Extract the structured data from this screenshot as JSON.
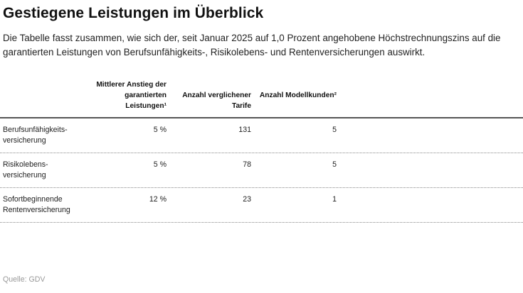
{
  "title": "Gestiegene Leistungen im Überblick",
  "subtitle": "Die Tabelle fasst zusammen, wie sich der, seit Januar 2025 auf 1,0 Prozent angehobene  Höchstrechnungszins auf die garantierten Leistungen von Berufsunfähigkeits-, Risikolebens- und Rentenversicherungen auswirkt.",
  "table": {
    "headers": [
      "Mittlerer Anstieg der garantierten Leistungen¹",
      "Anzahl verglichener Tarife",
      "Anzahl Modellkunden²"
    ],
    "rows": [
      {
        "label": "Berufsunfähigkeits-versicherung",
        "anstieg": "5 %",
        "tarife": "131",
        "kunden": "5"
      },
      {
        "label": "Risikolebens-versicherung",
        "anstieg": "5 %",
        "tarife": "78",
        "kunden": "5"
      },
      {
        "label": "Sofortbeginnende Rentenversicherung",
        "anstieg": "12 %",
        "tarife": "23",
        "kunden": "1"
      }
    ]
  },
  "source": "Quelle: GDV"
}
